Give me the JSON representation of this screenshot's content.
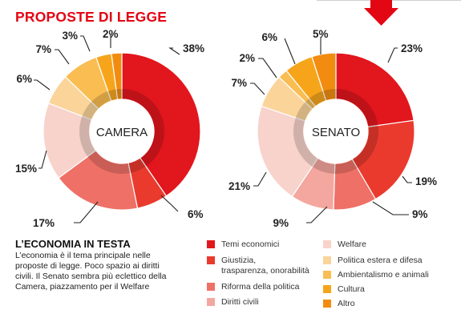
{
  "title": "PROPOSTE DI LEGGE",
  "text": {
    "subhead": "L’ECONOMIA IN TESTA",
    "body": "L’economia è il tema principale nelle proposte di legge. Poco spazio ai diritti civili. Il Senato sembra più eclettico della Camera, piazzamento per il Welfare"
  },
  "colors": {
    "accent": "#e30613",
    "Temi economici": "#e2161d",
    "Giustizia, trasparenza, onorabilità": "#ea3a2e",
    "Riforma della politica": "#ef7066",
    "Diritti civili": "#f4a79f",
    "Welfare": "#f8d3cb",
    "Politica estera e difesa": "#fbd49a",
    "Ambientalismo e animali": "#f9bd52",
    "Cultura": "#f6a51b",
    "Altro": "#f28c10"
  },
  "legend": [
    {
      "label": "Temi economici"
    },
    {
      "label": "Giustizia,\ntrasparenza, onorabilità"
    },
    {
      "label": "Riforma della politica"
    },
    {
      "label": "Diritti civili"
    },
    {
      "label": "Welfare"
    },
    {
      "label": "Politica estera e difesa"
    },
    {
      "label": "Ambientalismo e animali"
    },
    {
      "label": "Cultura"
    },
    {
      "label": "Altro"
    }
  ],
  "chart_data": [
    {
      "type": "pie",
      "title": "CAMERA",
      "categories": [
        "Temi economici",
        "Giustizia, trasparenza, onorabilità",
        "Riforma della politica",
        "Diritti civili",
        "Welfare",
        "Politica estera e difesa",
        "Ambientalismo e animali",
        "Cultura",
        "Altro"
      ],
      "values": [
        38,
        6,
        17,
        0,
        15,
        6,
        7,
        3,
        2
      ],
      "labels": [
        "38%",
        "6%",
        "17%",
        "",
        "15%",
        "6%",
        "7%",
        "3%",
        "2%"
      ]
    },
    {
      "type": "pie",
      "title": "SENATO",
      "categories": [
        "Temi economici",
        "Giustizia, trasparenza, onorabilità",
        "Riforma della politica",
        "Diritti civili",
        "Welfare",
        "Politica estera e difesa",
        "Ambientalismo e animali",
        "Cultura",
        "Altro"
      ],
      "values": [
        23,
        19,
        9,
        9,
        21,
        7,
        2,
        6,
        5
      ],
      "labels": [
        "23%",
        "19%",
        "9%",
        "9%",
        "21%",
        "7%",
        "2%",
        "6%",
        "5%"
      ]
    }
  ]
}
